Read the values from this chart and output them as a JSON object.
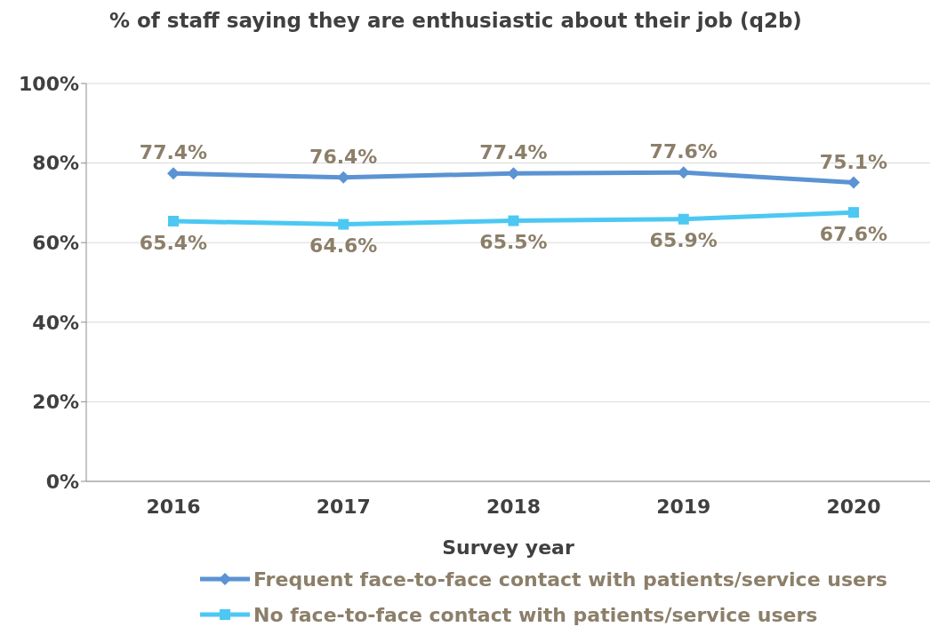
{
  "chart_data": {
    "type": "line",
    "title": "% of staff saying they are enthusiastic about their job (q2b)",
    "xlabel": "Survey year",
    "categories": [
      "2016",
      "2017",
      "2018",
      "2019",
      "2020"
    ],
    "series": [
      {
        "name": "Frequent face-to-face contact with patients/service users",
        "color": "#5b93d3",
        "marker": "diamond",
        "values": [
          77.4,
          76.4,
          77.4,
          77.6,
          75.1
        ],
        "value_labels": [
          "77.4%",
          "76.4%",
          "77.4%",
          "77.6%",
          "75.1%"
        ]
      },
      {
        "name": "No face-to-face contact with patients/service users",
        "color": "#4cc8f2",
        "marker": "square",
        "values": [
          65.4,
          64.6,
          65.5,
          65.9,
          67.6
        ],
        "value_labels": [
          "65.4%",
          "64.6%",
          "65.5%",
          "65.9%",
          "67.6%"
        ]
      }
    ],
    "ylim": [
      0,
      100
    ],
    "yticks": [
      {
        "value": 0,
        "label": "0%"
      },
      {
        "value": 20,
        "label": "20%"
      },
      {
        "value": 40,
        "label": "40%"
      },
      {
        "value": 60,
        "label": "60%"
      },
      {
        "value": 80,
        "label": "80%"
      },
      {
        "value": 100,
        "label": "100%"
      }
    ],
    "grid": "y",
    "legend": "bottom"
  }
}
